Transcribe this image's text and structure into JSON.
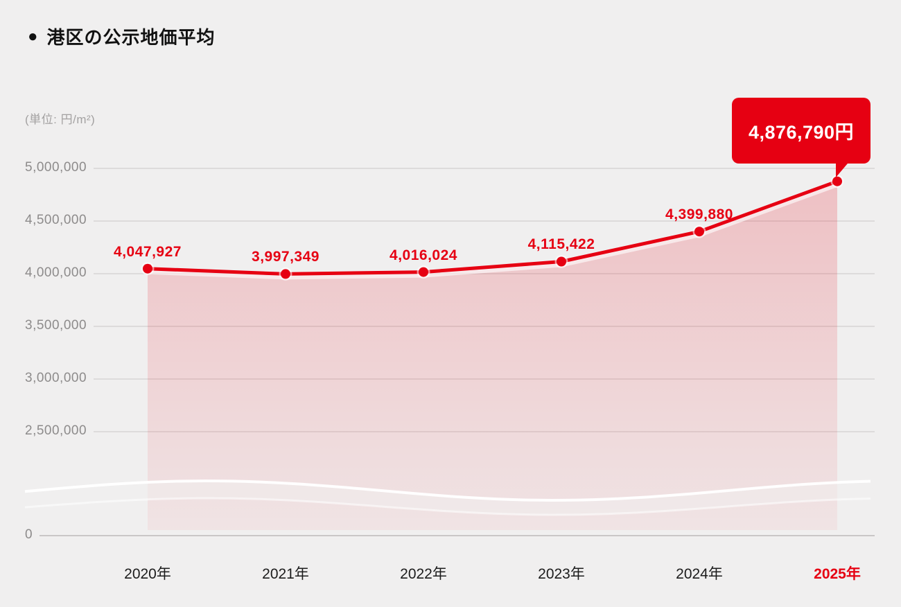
{
  "title": "港区の公示地価平均",
  "title_bullet": "●",
  "unit_label": "(単位: 円/m²)",
  "colors": {
    "accent_red": "#e60012",
    "background": "#f0efef",
    "grid": "#dddbdb",
    "axis": "#c9c7c7",
    "y_label": "#8d8b8b",
    "x_label": "#1c1c1c",
    "callout_text": "#ffffff"
  },
  "chart_data": {
    "type": "line",
    "title": "港区の公示地価平均",
    "unit": "円/m²",
    "categories": [
      "2020年",
      "2021年",
      "2022年",
      "2023年",
      "2024年",
      "2025年"
    ],
    "values": [
      4047927,
      3997349,
      4016024,
      4115422,
      4399880,
      4876790
    ],
    "value_labels": [
      "4,047,927",
      "3,997,349",
      "4,016,024",
      "4,115,422",
      "4,399,880"
    ],
    "callout_label": "4,876,790円",
    "ytick_labels": [
      "5,000,000",
      "4,500,000",
      "4,000,000",
      "3,500,000",
      "3,000,000",
      "2,500,000",
      "0"
    ],
    "ylim": [
      0,
      5000000
    ],
    "grid": "horizontal",
    "legend": "none",
    "axis_break": true,
    "area_fill": true,
    "highlight_category": "2025年"
  }
}
